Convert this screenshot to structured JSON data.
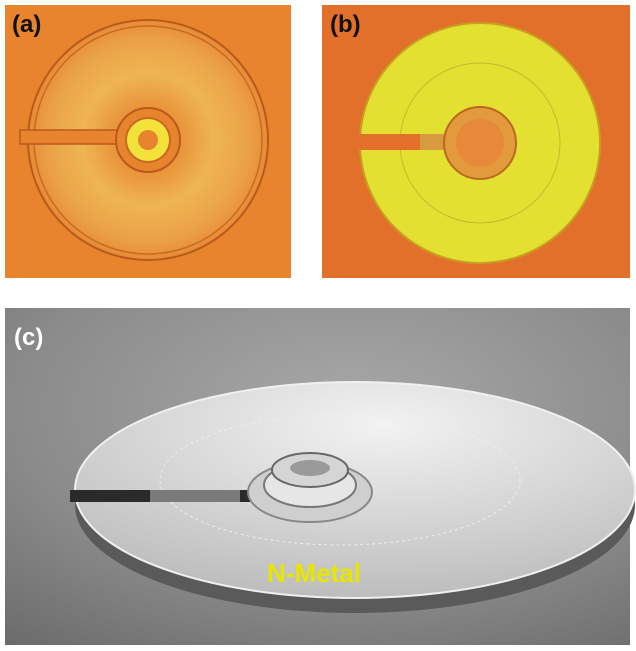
{
  "panels": [
    {
      "label": "(a)"
    },
    {
      "label": "(b)"
    },
    {
      "label": "(c)",
      "annotation": "N-Metal"
    }
  ]
}
